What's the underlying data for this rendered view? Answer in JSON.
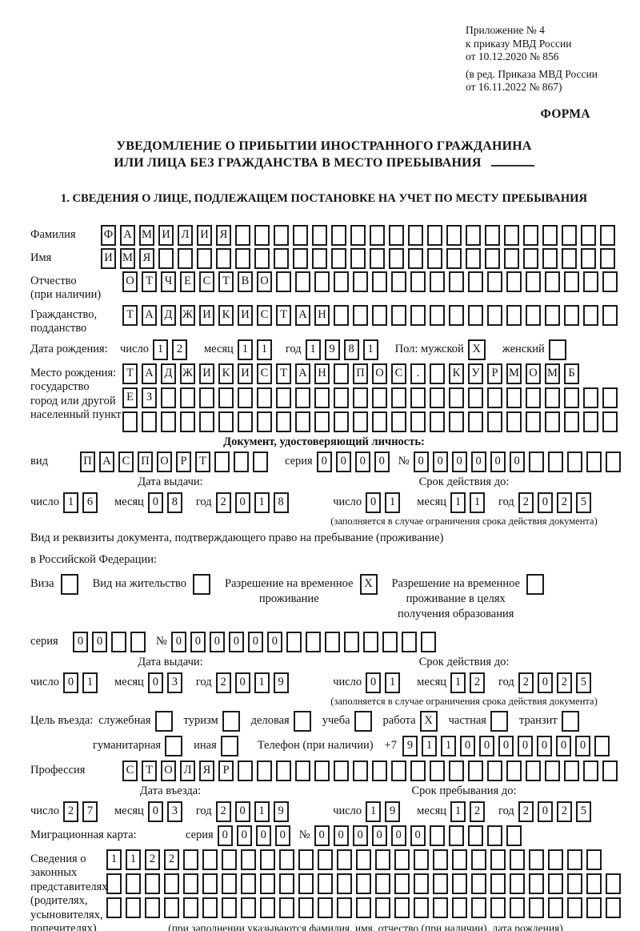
{
  "date_labels": {
    "day": "число",
    "month": "месяц",
    "year": "год"
  },
  "header": {
    "appendix": [
      "Приложение № 4",
      "к приказу МВД России",
      "от 10.12.2020 № 856"
    ],
    "amendment": [
      "(в ред. Приказа МВД России",
      "от 16.11.2022 № 867)"
    ],
    "form_label": "ФОРМА"
  },
  "title": {
    "line1": "УВЕДОМЛЕНИЕ О ПРИБЫТИИ ИНОСТРАННОГО ГРАЖДАНИНА",
    "line2": "ИЛИ ЛИЦА БЕЗ ГРАЖДАНСТВА В МЕСТО ПРЕБЫВАНИЯ"
  },
  "section1": {
    "title": "1. СВЕДЕНИЯ О ЛИЦЕ, ПОДЛЕЖАЩЕМ ПОСТАНОВКЕ НА УЧЕТ ПО МЕСТУ ПРЕБЫВАНИЯ"
  },
  "person": {
    "surname": {
      "label": "Фамилия",
      "cells": {
        "t": "ФАМИЛИЯ",
        "n": 27
      }
    },
    "given_name": {
      "label": "Имя",
      "cells": {
        "t": "ИМЯ",
        "n": 27
      }
    },
    "patronymic": {
      "label_line1": "Отчество",
      "label_line2": "(при наличии)",
      "cells": {
        "t": "ОТЧЕСТВО",
        "n": 26
      }
    },
    "citizenship": {
      "label_line1": "Гражданство,",
      "label_line2": "подданство",
      "cells": {
        "t": "ТАДЖИКИСТАН",
        "n": 26
      }
    },
    "birth_date": {
      "label": "Дата рождения:",
      "day": {
        "t": "12",
        "n": 2
      },
      "month": {
        "t": "11",
        "n": 2
      },
      "year": {
        "t": "1981",
        "n": 4
      }
    },
    "sex": {
      "label": "Пол: мужской",
      "male_box": {
        "t": "X",
        "n": 1
      },
      "female_label": "женский",
      "female_box": {
        "t": "",
        "n": 1
      }
    },
    "birth_place": {
      "label_lines": [
        "Место рождения:",
        "государство",
        "город или другой",
        "населенный пункт"
      ],
      "row1": {
        "t": "ТАДЖИКИСТАН ПОС. КУРМОМБ",
        "n": 24
      },
      "row2": {
        "t": "ЕЗ",
        "n": 26
      },
      "row3": {
        "t": "",
        "n": 26
      }
    }
  },
  "identity_doc": {
    "header": "Документ, удостоверяющий личность:",
    "type_label": "вид",
    "type": {
      "t": "ПАСПОРТ",
      "n": 10
    },
    "series_label": "серия",
    "series": {
      "t": "0000",
      "n": 4
    },
    "number_label": "№",
    "number": {
      "t": "000000",
      "n": 11
    },
    "issue": {
      "header": "Дата выдачи:",
      "day": {
        "t": "16",
        "n": 2
      },
      "month": {
        "t": "08",
        "n": 2
      },
      "year": {
        "t": "2018",
        "n": 4
      }
    },
    "valid": {
      "header": "Срок действия до:",
      "day": {
        "t": "01",
        "n": 2
      },
      "month": {
        "t": "11",
        "n": 2
      },
      "year": {
        "t": "2025",
        "n": 4
      }
    },
    "note": "(заполняется в случае ограничения срока действия документа)"
  },
  "residence_doc": {
    "line1": "Вид и реквизиты документа, подтверждающего право на пребывание (проживание)",
    "line2": "в Российской Федерации:",
    "visa_label": "Виза",
    "visa_box": {
      "t": "",
      "n": 1
    },
    "permit_label": "Вид на жительство",
    "permit_box": {
      "t": "",
      "n": 1
    },
    "temp_label_line1": "Разрешение на временное",
    "temp_label_line2": "проживание",
    "temp_box": {
      "t": "X",
      "n": 1
    },
    "edu_label_line1": "Разрешение на временное",
    "edu_label_line2": "проживание в целях",
    "edu_label_line3": "получения образования",
    "edu_box": {
      "t": "",
      "n": 1
    },
    "series_label": "серия",
    "series": {
      "t": "00",
      "n": 4
    },
    "number_label": "№",
    "number": {
      "t": "000000",
      "n": 14
    },
    "issue": {
      "header": "Дата выдачи:",
      "day": {
        "t": "01",
        "n": 2
      },
      "month": {
        "t": "03",
        "n": 2
      },
      "year": {
        "t": "2019",
        "n": 4
      }
    },
    "valid": {
      "header": "Срок действия до:",
      "day": {
        "t": "01",
        "n": 2
      },
      "month": {
        "t": "12",
        "n": 2
      },
      "year": {
        "t": "2025",
        "n": 4
      }
    },
    "note": "(заполняется в случае ограничения срока действия документа)"
  },
  "visit": {
    "purpose_label": "Цель въезда:",
    "options": [
      {
        "label": "служебная",
        "box": {
          "t": "",
          "n": 1
        }
      },
      {
        "label": "туризм",
        "box": {
          "t": "",
          "n": 1
        }
      },
      {
        "label": "деловая",
        "box": {
          "t": "",
          "n": 1
        }
      },
      {
        "label": "учеба",
        "box": {
          "t": "",
          "n": 1
        }
      },
      {
        "label": "работа",
        "box": {
          "t": "X",
          "n": 1
        }
      },
      {
        "label": "частная",
        "box": {
          "t": "",
          "n": 1
        }
      },
      {
        "label": "транзит",
        "box": {
          "t": "",
          "n": 1
        }
      }
    ],
    "humanitarian_label": "гуманитарная",
    "humanitarian_box": {
      "t": "",
      "n": 1
    },
    "other_label": "иная",
    "other_box": {
      "t": "",
      "n": 1
    },
    "phone_label": "Телефон (при наличии)",
    "phone_prefix": "+7",
    "phone": {
      "t": "9110000000",
      "n": 11
    },
    "profession_label": "Профессия",
    "profession": {
      "t": "СТОЛЯР",
      "n": 26
    },
    "entry": {
      "header": "Дата въезда:",
      "day": {
        "t": "27",
        "n": 2
      },
      "month": {
        "t": "03",
        "n": 2
      },
      "year": {
        "t": "2019",
        "n": 4
      }
    },
    "stay": {
      "header": "Срок пребывания до:",
      "day": {
        "t": "19",
        "n": 2
      },
      "month": {
        "t": "12",
        "n": 2
      },
      "year": {
        "t": "2025",
        "n": 4
      }
    },
    "migration_card_label": "Миграционная карта:",
    "mc_series_label": "серия",
    "mc_series": {
      "t": "0000",
      "n": 4
    },
    "mc_number_label": "№",
    "mc_number": {
      "t": "000000",
      "n": 11
    }
  },
  "representatives": {
    "label_lines": [
      "Сведения о",
      "законных",
      "представителях",
      "(родителях,",
      "усыновителях,",
      "попечителях)"
    ],
    "row1": {
      "t": "1122",
      "n": 26
    },
    "row2": {
      "t": "",
      "n": 27
    },
    "row3": {
      "t": "",
      "n": 27
    },
    "note": "(при заполнении указываются фамилия, имя, отчество (при наличии), дата рождения)"
  }
}
